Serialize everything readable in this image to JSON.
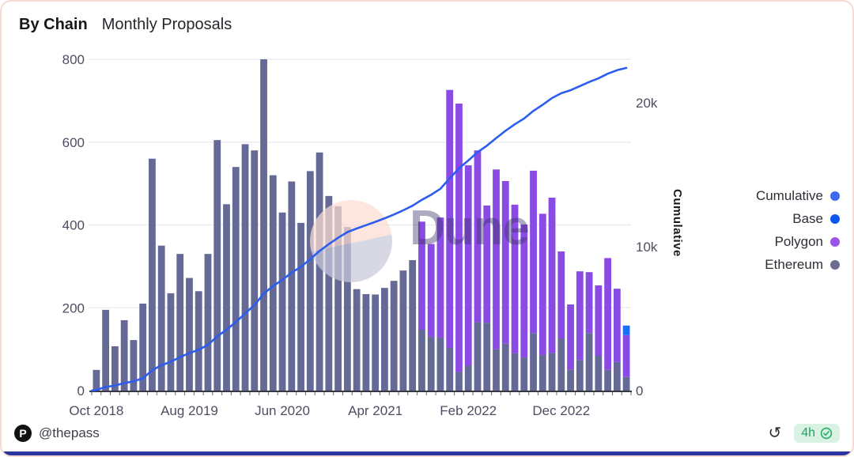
{
  "header": {
    "widget_name": "By Chain",
    "chart_title": "Monthly Proposals"
  },
  "watermark": {
    "text": "Dune"
  },
  "footer": {
    "logo_letter": "P",
    "author": "@thepass",
    "refresh_glyph": "↺",
    "age": "4h"
  },
  "chart_data": {
    "type": "bar",
    "subtype": "stacked-bars-with-cumulative-line",
    "title": "Monthly Proposals",
    "xlabel": "",
    "ylabel_left": "",
    "ylabel_right": "Cumulative",
    "grid": "horizontal-only",
    "legend_position": "right",
    "y_left": {
      "ticks": [
        0,
        200,
        400,
        600,
        800
      ],
      "max": 800
    },
    "y_right": {
      "tick_values": [
        0,
        10000,
        20000
      ],
      "tick_labels": [
        "0",
        "10k",
        "20k"
      ],
      "label": "Cumulative"
    },
    "x_ticks": {
      "indices": [
        0,
        10,
        20,
        30,
        40,
        50
      ],
      "labels": [
        "Oct 2018",
        "Aug 2019",
        "Jun 2020",
        "Apr 2021",
        "Feb 2022",
        "Dec 2022"
      ]
    },
    "categories": [
      "Oct 2018",
      "Nov 2018",
      "Dec 2018",
      "Jan 2019",
      "Feb 2019",
      "Mar 2019",
      "Apr 2019",
      "May 2019",
      "Jun 2019",
      "Jul 2019",
      "Aug 2019",
      "Sep 2019",
      "Oct 2019",
      "Nov 2019",
      "Dec 2019",
      "Jan 2020",
      "Feb 2020",
      "Mar 2020",
      "Apr 2020",
      "May 2020",
      "Jun 2020",
      "Jul 2020",
      "Aug 2020",
      "Sep 2020",
      "Oct 2020",
      "Nov 2020",
      "Dec 2020",
      "Jan 2021",
      "Feb 2021",
      "Mar 2021",
      "Apr 2021",
      "May 2021",
      "Jun 2021",
      "Jul 2021",
      "Aug 2021",
      "Sep 2021",
      "Oct 2021",
      "Nov 2021",
      "Dec 2021",
      "Jan 2022",
      "Feb 2022",
      "Mar 2022",
      "Apr 2022",
      "May 2022",
      "Jun 2022",
      "Jul 2022",
      "Aug 2022",
      "Sep 2022",
      "Oct 2022",
      "Nov 2022",
      "Dec 2022",
      "Jan 2023",
      "Feb 2023",
      "Mar 2023",
      "Apr 2023",
      "May 2023",
      "Jun 2023",
      "Jul 2023"
    ],
    "series": [
      {
        "name": "Ethereum",
        "color": "#646a95",
        "values": [
          50,
          195,
          107,
          170,
          122,
          210,
          560,
          350,
          235,
          330,
          272,
          240,
          330,
          605,
          450,
          540,
          595,
          580,
          800,
          520,
          430,
          505,
          405,
          530,
          575,
          470,
          445,
          395,
          245,
          233,
          232,
          248,
          265,
          290,
          315,
          147,
          130,
          128,
          103,
          45,
          60,
          165,
          164,
          100,
          113,
          90,
          80,
          139,
          86,
          91,
          126,
          51,
          74,
          139,
          84,
          50,
          69,
          33
        ]
      },
      {
        "name": "Polygon",
        "color": "#8a4ae4",
        "values": [
          0,
          0,
          0,
          0,
          0,
          0,
          0,
          0,
          0,
          0,
          0,
          0,
          0,
          0,
          0,
          0,
          0,
          0,
          0,
          0,
          0,
          0,
          0,
          0,
          0,
          0,
          0,
          0,
          0,
          0,
          0,
          0,
          0,
          0,
          0,
          261,
          224,
          290,
          623,
          648,
          484,
          415,
          283,
          434,
          393,
          359,
          321,
          392,
          341,
          375,
          210,
          157,
          214,
          147,
          170,
          270,
          177,
          101
        ]
      },
      {
        "name": "Base",
        "color": "#1a6ff5",
        "values": [
          0,
          0,
          0,
          0,
          0,
          0,
          0,
          0,
          0,
          0,
          0,
          0,
          0,
          0,
          0,
          0,
          0,
          0,
          0,
          0,
          0,
          0,
          0,
          0,
          0,
          0,
          0,
          0,
          0,
          0,
          0,
          0,
          0,
          0,
          0,
          0,
          0,
          0,
          0,
          0,
          0,
          0,
          0,
          0,
          0,
          0,
          0,
          0,
          0,
          0,
          0,
          0,
          0,
          0,
          0,
          0,
          0,
          23
        ]
      }
    ],
    "line": {
      "name": "Cumulative",
      "color": "#2d5cf0",
      "derivation": "running sum of all stacked series, plotted on right axis",
      "end_value_approx": 22400
    },
    "legend": [
      {
        "label": "Cumulative",
        "color": "#3f6af0"
      },
      {
        "label": "Base",
        "color": "#0c56f2"
      },
      {
        "label": "Polygon",
        "color": "#9b54ea"
      },
      {
        "label": "Ethereum",
        "color": "#6b6e91"
      }
    ]
  }
}
